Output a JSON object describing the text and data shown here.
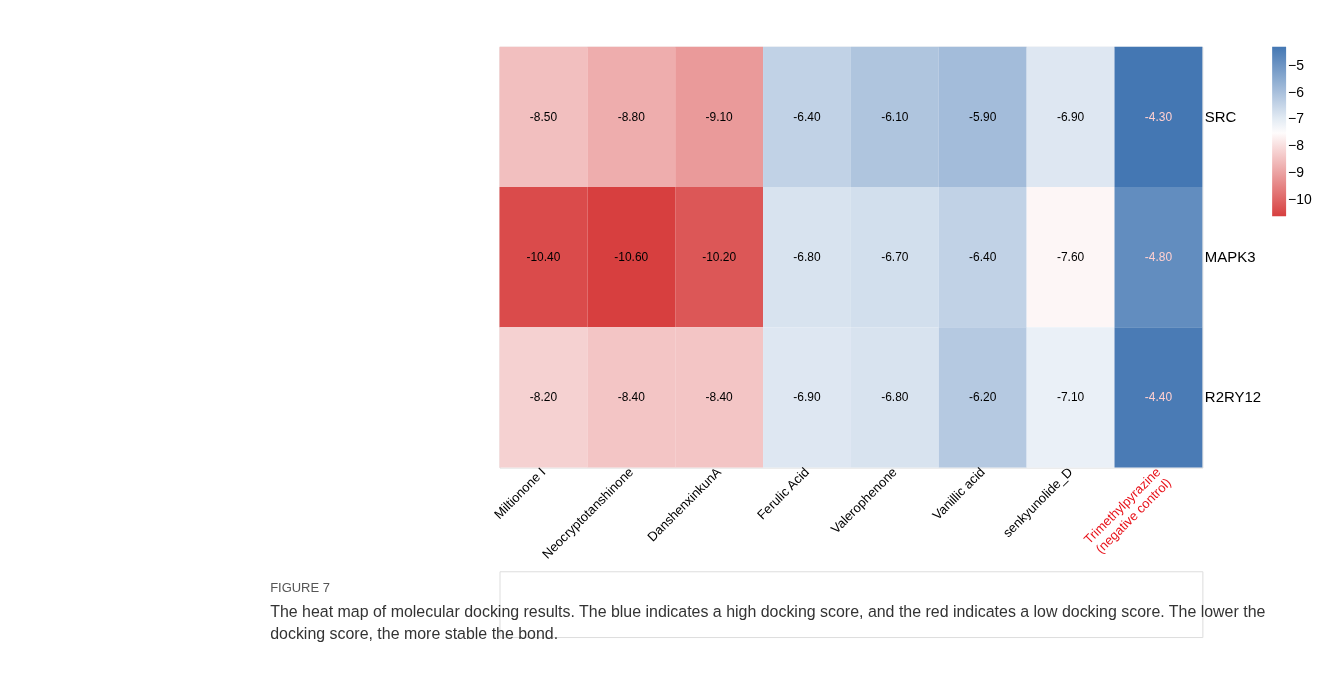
{
  "chart_data": {
    "type": "heatmap",
    "title": "FIGURE 7",
    "categories": [
      "Miltionone I",
      "Neocryptotanshinone",
      "DanshenxinkunA",
      "Ferulic Acid",
      "Valerophenone",
      "Vanillic acid",
      "senkyunolide_D",
      "Trimethylpyrazine\n(negative control)"
    ],
    "y_categories": [
      "SRC",
      "MAPK3",
      "R2RY12"
    ],
    "cells": [
      [
        -8.5,
        -8.8,
        -9.1,
        -6.4,
        -6.1,
        -5.9,
        -6.9,
        -4.3
      ],
      [
        -10.4,
        -10.6,
        -10.2,
        -6.8,
        -6.7,
        -6.4,
        -7.6,
        -4.8
      ],
      [
        -8.2,
        -8.4,
        -8.4,
        -6.9,
        -6.8,
        -6.2,
        -7.1,
        -4.4
      ]
    ],
    "cell_labels": [
      [
        "-8.50",
        "-8.80",
        "-9.10",
        "-6.40",
        "-6.10",
        "-5.90",
        "-6.90",
        "-4.30"
      ],
      [
        "-10.40",
        "-10.60",
        "-10.20",
        "-6.80",
        "-6.70",
        "-6.40",
        "-7.60",
        "-4.80"
      ],
      [
        "-8.20",
        "-8.40",
        "-8.40",
        "-6.90",
        "-6.80",
        "-6.20",
        "-7.10",
        "-4.40"
      ]
    ],
    "clim": [
      -10.6,
      -4.3
    ],
    "cticks": [
      -10,
      -9,
      -8,
      -7,
      -6,
      -5
    ],
    "annotations": [
      "The heat map of molecular docking results. The blue indicates a high docking score, and the red indicates a low docking score. The lower the docking score, the more stable the bond."
    ]
  }
}
